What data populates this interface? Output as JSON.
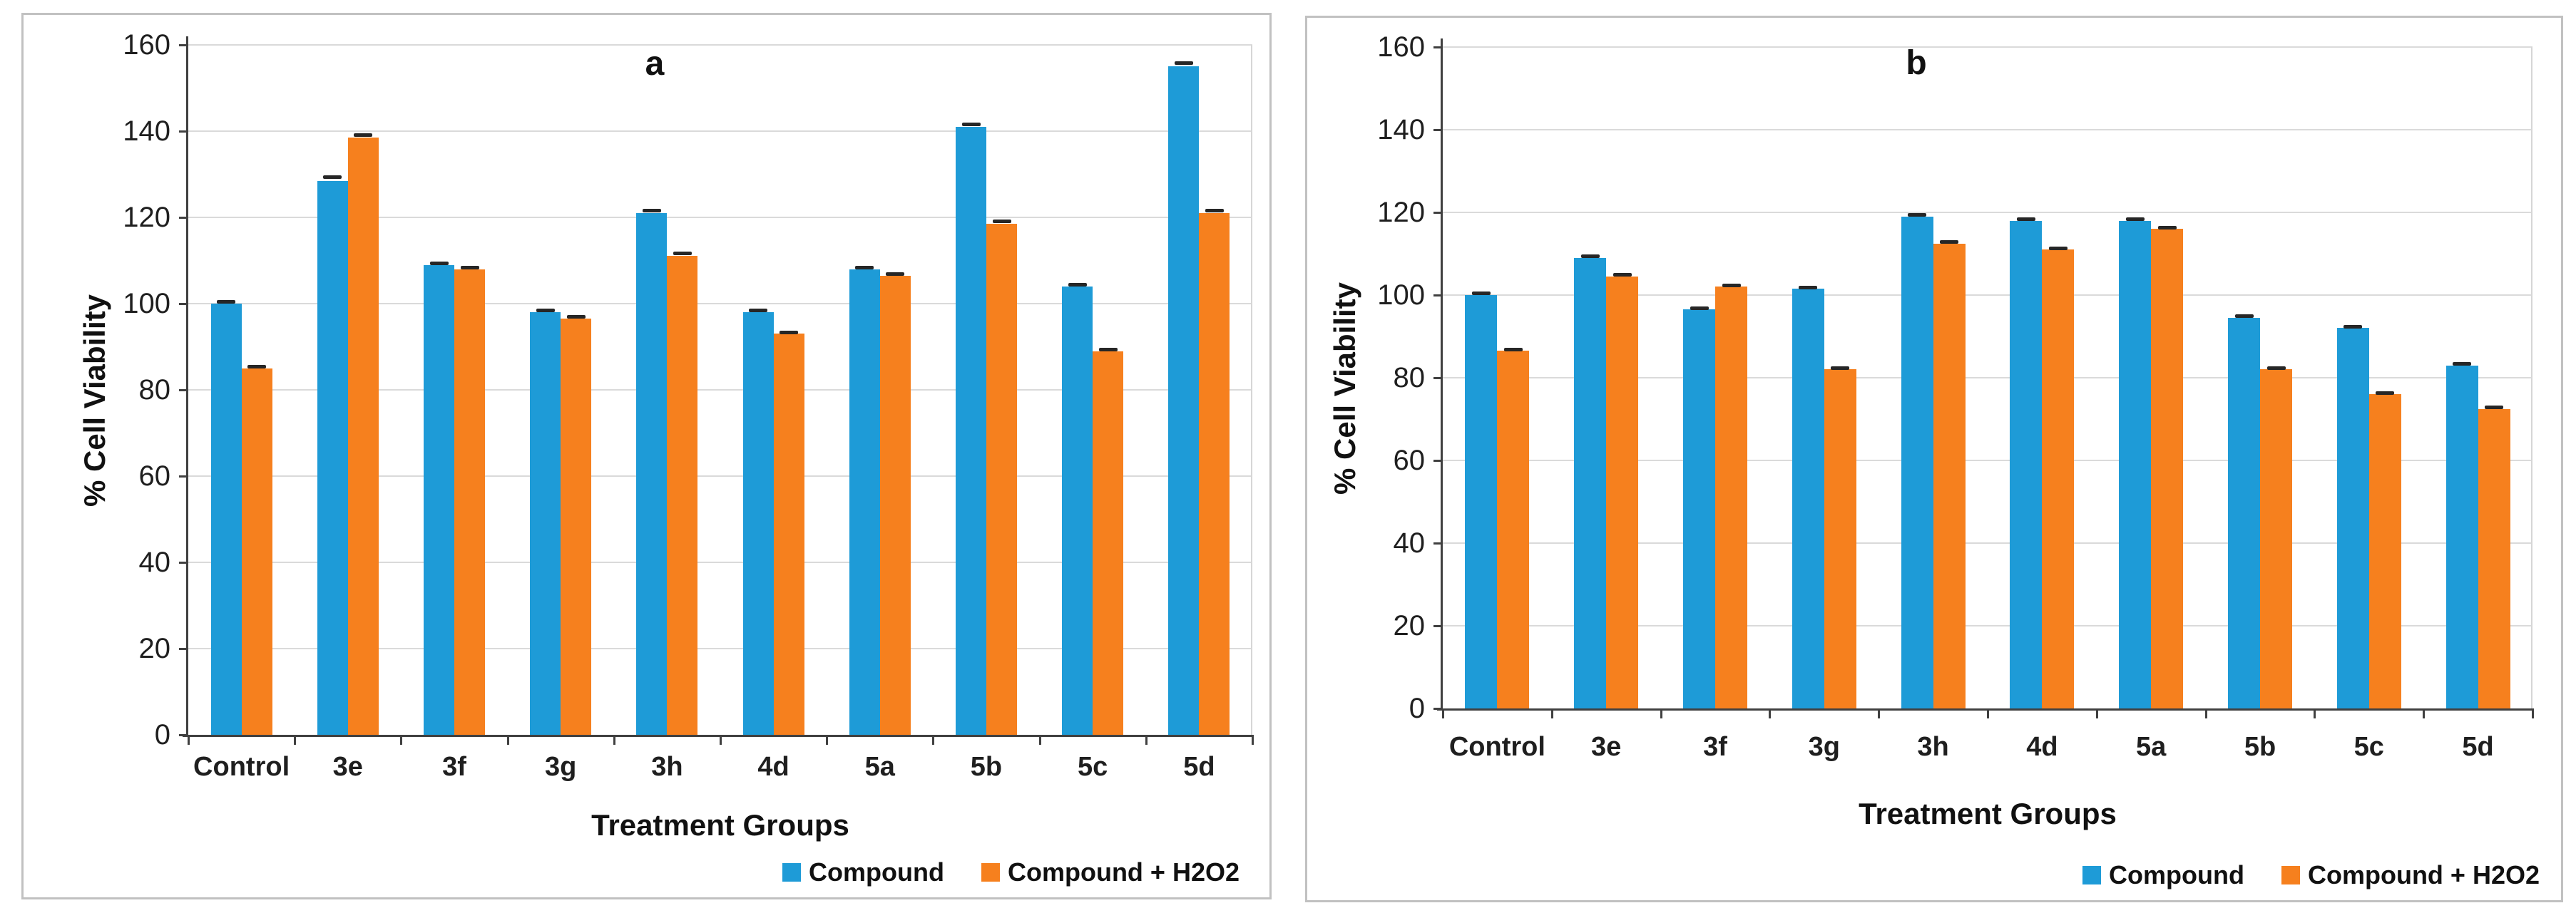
{
  "figure": {
    "description": "Two-panel grouped bar chart of percent cell viability across treatment groups",
    "colors": {
      "compound_blue": "#1E9BD7",
      "compound_h2o2_orange": "#F6801E",
      "gridline": "#DADADA",
      "axis": "#404040",
      "error_bar": "#262626",
      "panel_border": "#C1C1C1",
      "text": "#1F1F1F"
    }
  },
  "chart_data": [
    {
      "type": "bar",
      "panel_label": "a",
      "title": "a",
      "xlabel": "Treatment Groups",
      "ylabel": "% Cell Viability",
      "ylim": [
        0,
        160
      ],
      "yticks": [
        0,
        20,
        40,
        60,
        80,
        100,
        120,
        140,
        160
      ],
      "grid": true,
      "legend_position": "bottom-right",
      "categories": [
        "Control",
        "3e",
        "3f",
        "3g",
        "3h",
        "4d",
        "5a",
        "5b",
        "5c",
        "5d"
      ],
      "series": [
        {
          "name": "Compound",
          "color": "#1E9BD7",
          "values": [
            100,
            128.5,
            109,
            98,
            121,
            98,
            108,
            141,
            104,
            155
          ],
          "errors": [
            0.8,
            1.2,
            0.8,
            0.8,
            1,
            0.8,
            0.8,
            1,
            0.8,
            1.2
          ]
        },
        {
          "name": "Compound + H2O2",
          "color": "#F6801E",
          "values": [
            85,
            138.5,
            108,
            96.5,
            111,
            93,
            106.5,
            118.5,
            89,
            121
          ],
          "errors": [
            0.8,
            1,
            0.8,
            0.8,
            1,
            0.8,
            0.8,
            1,
            0.8,
            1
          ]
        }
      ]
    },
    {
      "type": "bar",
      "panel_label": "b",
      "title": "b",
      "xlabel": "Treatment Groups",
      "ylabel": "% Cell Viability",
      "ylim": [
        0,
        160
      ],
      "yticks": [
        0,
        20,
        40,
        60,
        80,
        100,
        120,
        140,
        160
      ],
      "grid": true,
      "legend_position": "bottom-right",
      "categories": [
        "Control",
        "3e",
        "3f",
        "3g",
        "3h",
        "4d",
        "5a",
        "5b",
        "5c",
        "5d"
      ],
      "series": [
        {
          "name": "Compound",
          "color": "#1E9BD7",
          "values": [
            100,
            109,
            96.5,
            101.5,
            119,
            118,
            118,
            94.5,
            92,
            83
          ],
          "errors": [
            0.8,
            0.8,
            0.8,
            0.8,
            0.8,
            0.8,
            0.8,
            0.8,
            0.8,
            0.8
          ]
        },
        {
          "name": "Compound + H2O2",
          "color": "#F6801E",
          "values": [
            86.5,
            104.5,
            102,
            82,
            112.5,
            111,
            116,
            82,
            76,
            72.5
          ],
          "errors": [
            0.8,
            0.8,
            0.8,
            0.8,
            0.8,
            0.8,
            0.8,
            0.8,
            0.8,
            0.8
          ]
        }
      ]
    }
  ]
}
